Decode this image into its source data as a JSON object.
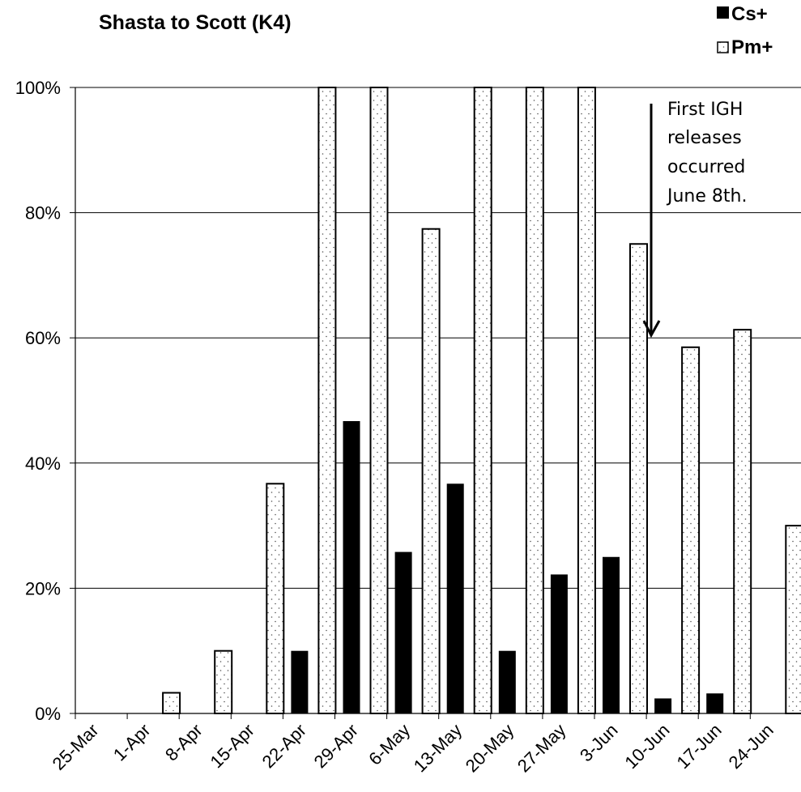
{
  "chart_data": {
    "type": "bar",
    "title": "Shasta to Scott (K4)",
    "categories": [
      "25-Mar",
      "1-Apr",
      "8-Apr",
      "15-Apr",
      "22-Apr",
      "29-Apr",
      "6-May",
      "13-May",
      "20-May",
      "27-May",
      "3-Jun",
      "10-Jun",
      "17-Jun",
      "24-Jun"
    ],
    "series": [
      {
        "name": "Cs+",
        "fill": "solid",
        "color": "#000000",
        "values": [
          null,
          null,
          null,
          null,
          10,
          46.7,
          25.8,
          36.7,
          10,
          22.2,
          25,
          2.4,
          3.2,
          null
        ]
      },
      {
        "name": "Pm+",
        "fill": "dotted",
        "color": "#ffffff",
        "values": [
          null,
          3.3,
          10,
          36.7,
          100,
          100,
          77.4,
          100,
          100,
          100,
          75,
          58.5,
          61.3,
          30
        ]
      }
    ],
    "ylim": [
      0,
      100
    ],
    "yticks": [
      "0%",
      "20%",
      "40%",
      "60%",
      "80%",
      "100%"
    ],
    "grid": true,
    "legend": "top-right",
    "annotation": {
      "lines": [
        "First IGH",
        "releases",
        "occurred",
        "June 8th."
      ]
    }
  }
}
